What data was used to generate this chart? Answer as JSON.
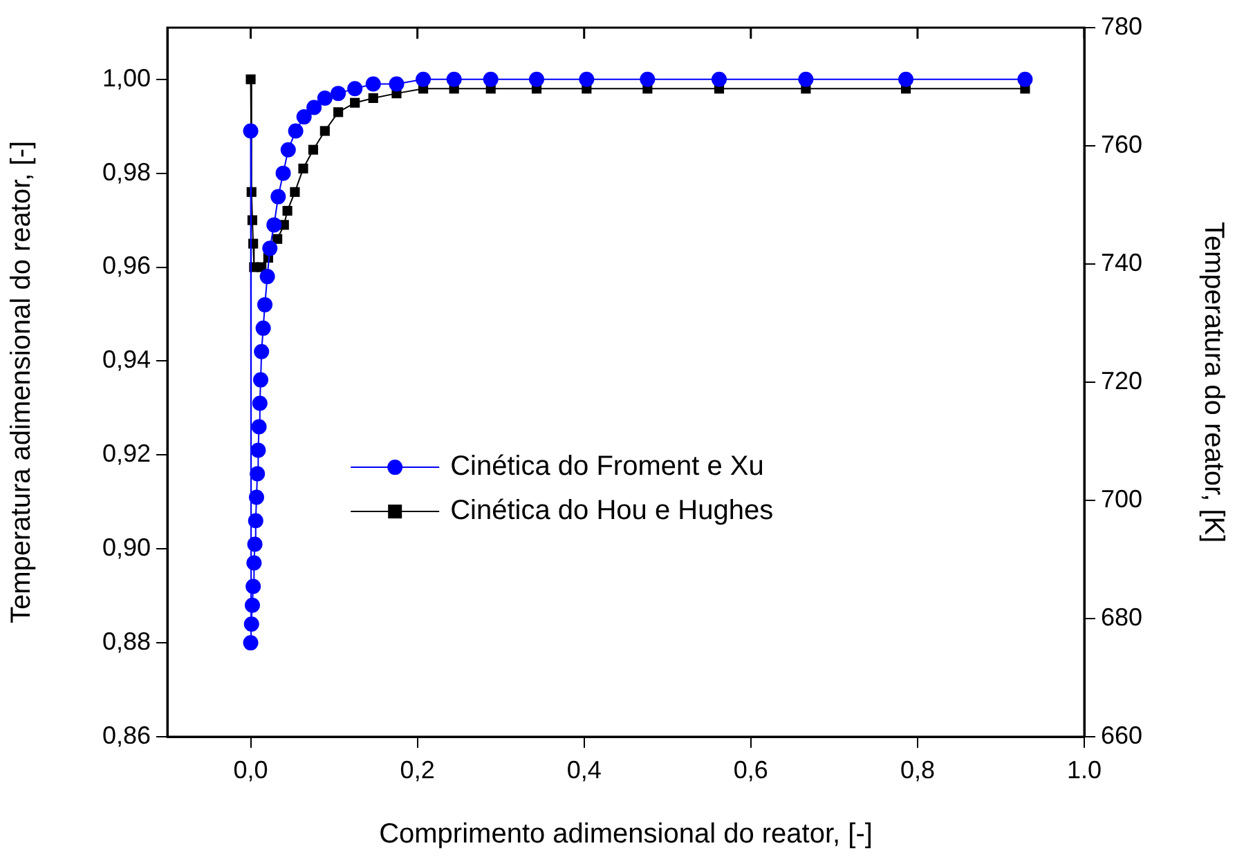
{
  "chart_data": {
    "type": "line",
    "xlabel": "Comprimento adimensional do reator, [-]",
    "ylabel": "Temperatura adimensional do reator, [-]",
    "y2label": "Temperatura do reator, [K]",
    "xlim": [
      -0.1,
      1.0
    ],
    "xticks": [
      {
        "value": 0,
        "label": "0,0"
      },
      {
        "value": 0.2,
        "label": "0,2"
      },
      {
        "value": 0.4,
        "label": "0,4"
      },
      {
        "value": 0.6,
        "label": "0,6"
      },
      {
        "value": 0.8,
        "label": "0,8"
      },
      {
        "value": 1.0,
        "label": "1.0"
      }
    ],
    "ylim": [
      0.86,
      1.011
    ],
    "yticks": [
      {
        "value": 0.86,
        "label": "0,86"
      },
      {
        "value": 0.88,
        "label": "0,88"
      },
      {
        "value": 0.9,
        "label": "0,90"
      },
      {
        "value": 0.92,
        "label": "0,92"
      },
      {
        "value": 0.94,
        "label": "0,94"
      },
      {
        "value": 0.96,
        "label": "0,96"
      },
      {
        "value": 0.98,
        "label": "0,98"
      },
      {
        "value": 1.0,
        "label": "1,00"
      }
    ],
    "y2lim": [
      660,
      780
    ],
    "y2ticks": [
      660,
      680,
      700,
      720,
      740,
      760,
      780
    ],
    "legend": "center",
    "grid": false,
    "line_style": "solid",
    "series": [
      {
        "name": "Cinética do Froment e Xu",
        "color": "#0000ff",
        "marker": "circle",
        "x": [
          0,
          0,
          0.001,
          0.002,
          0.003,
          0.004,
          0.005,
          0.006,
          0.007,
          0.008,
          0.009,
          0.01,
          0.011,
          0.012,
          0.013,
          0.015,
          0.017,
          0.02,
          0.023,
          0.028,
          0.033,
          0.039,
          0.045,
          0.054,
          0.064,
          0.076,
          0.089,
          0.105,
          0.125,
          0.147,
          0.175,
          0.207,
          0.244,
          0.288,
          0.343,
          0.403,
          0.476,
          0.562,
          0.666,
          0.786,
          0.929
        ],
        "values": [
          0.989,
          0.88,
          0.884,
          0.888,
          0.892,
          0.897,
          0.901,
          0.906,
          0.911,
          0.916,
          0.921,
          0.926,
          0.931,
          0.936,
          0.942,
          0.947,
          0.952,
          0.958,
          0.964,
          0.969,
          0.975,
          0.98,
          0.985,
          0.989,
          0.992,
          0.994,
          0.996,
          0.997,
          0.998,
          0.999,
          0.999,
          1.0,
          1.0,
          1.0,
          1.0,
          1.0,
          1.0,
          1.0,
          1.0,
          1.0,
          1.0
        ]
      },
      {
        "name": "Cinética do Hou e Hughes",
        "color": "#000000",
        "marker": "square",
        "x": [
          0,
          0.001,
          0.002,
          0.003,
          0.004,
          0.013,
          0.021,
          0.032,
          0.04,
          0.044,
          0.053,
          0.063,
          0.075,
          0.089,
          0.105,
          0.125,
          0.147,
          0.175,
          0.207,
          0.244,
          0.288,
          0.343,
          0.403,
          0.476,
          0.562,
          0.666,
          0.786,
          0.929
        ],
        "values": [
          1.0,
          0.976,
          0.97,
          0.965,
          0.96,
          0.96,
          0.962,
          0.966,
          0.969,
          0.972,
          0.976,
          0.981,
          0.985,
          0.989,
          0.993,
          0.995,
          0.996,
          0.997,
          0.998,
          0.998,
          0.998,
          0.998,
          0.998,
          0.998,
          0.998,
          0.998,
          0.998,
          0.998
        ]
      }
    ]
  }
}
